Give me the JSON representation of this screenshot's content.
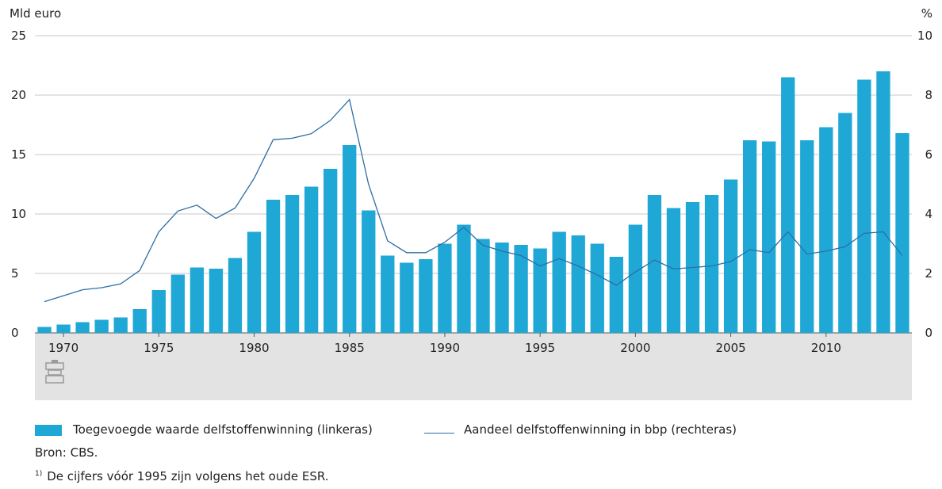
{
  "chart_data": {
    "type": "bar+line",
    "left_axis_unit": "Mld euro",
    "right_axis_unit": "%",
    "left_ticks": [
      0,
      5,
      10,
      15,
      20,
      25
    ],
    "right_ticks": [
      0,
      2,
      4,
      6,
      8,
      10
    ],
    "left_ylim": [
      0,
      25
    ],
    "right_ylim": [
      0,
      10
    ],
    "x_ticks": [
      1970,
      1975,
      1980,
      1985,
      1990,
      1995,
      2000,
      2005,
      2010
    ],
    "years": [
      1969,
      1970,
      1971,
      1972,
      1973,
      1974,
      1975,
      1976,
      1977,
      1978,
      1979,
      1980,
      1981,
      1982,
      1983,
      1984,
      1985,
      1986,
      1987,
      1988,
      1989,
      1990,
      1991,
      1992,
      1993,
      1994,
      1995,
      1996,
      1997,
      1998,
      1999,
      2000,
      2001,
      2002,
      2003,
      2004,
      2005,
      2006,
      2007,
      2008,
      2009,
      2010,
      2011,
      2012,
      2013,
      2014
    ],
    "grid": "horizontal",
    "series": [
      {
        "name": "Toegevoegde waarde delfstoffenwinning (linkeras)",
        "kind": "bar",
        "axis": "left",
        "color": "#1fa8d6",
        "values": [
          0.5,
          0.7,
          0.9,
          1.1,
          1.3,
          2.0,
          3.6,
          4.9,
          5.5,
          5.4,
          6.3,
          8.5,
          11.2,
          11.6,
          12.3,
          13.8,
          15.8,
          10.3,
          6.5,
          5.9,
          6.2,
          7.5,
          9.1,
          7.9,
          7.6,
          7.4,
          7.1,
          8.5,
          8.2,
          7.5,
          6.4,
          9.1,
          11.6,
          10.5,
          11.0,
          11.6,
          12.9,
          16.2,
          16.1,
          21.5,
          16.2,
          17.3,
          18.5,
          21.3,
          22.0,
          16.8
        ]
      },
      {
        "name": "Aandeel delfstoffenwinning in bbp (rechteras)",
        "kind": "line",
        "axis": "right",
        "color": "#2d6ea6",
        "values": [
          1.05,
          1.25,
          1.45,
          1.52,
          1.65,
          2.1,
          3.4,
          4.1,
          4.3,
          3.85,
          4.2,
          5.2,
          6.5,
          6.55,
          6.7,
          7.15,
          7.85,
          5.0,
          3.1,
          2.7,
          2.7,
          3.05,
          3.55,
          2.95,
          2.75,
          2.6,
          2.25,
          2.5,
          2.25,
          1.95,
          1.6,
          2.05,
          2.45,
          2.15,
          2.2,
          2.25,
          2.4,
          2.8,
          2.7,
          3.4,
          2.65,
          2.75,
          2.9,
          3.35,
          3.4,
          2.6
        ]
      }
    ]
  },
  "legend": {
    "bar_label": "Toegevoegde waarde delfstoffenwinning (linkeras)",
    "line_label": "Aandeel delfstoffenwinning in bbp (rechteras)"
  },
  "source": "Bron: CBS.",
  "footnote": {
    "marker": "1)",
    "text": "De cijfers vóór 1995 zijn volgens het oude ESR."
  },
  "colors": {
    "bar": "#1fa8d6",
    "line": "#2d6ea6",
    "strip": "#e3e3e3",
    "grid": "#c8c8c8"
  },
  "icons": {
    "strip_icon": "cbs-logo-icon"
  }
}
